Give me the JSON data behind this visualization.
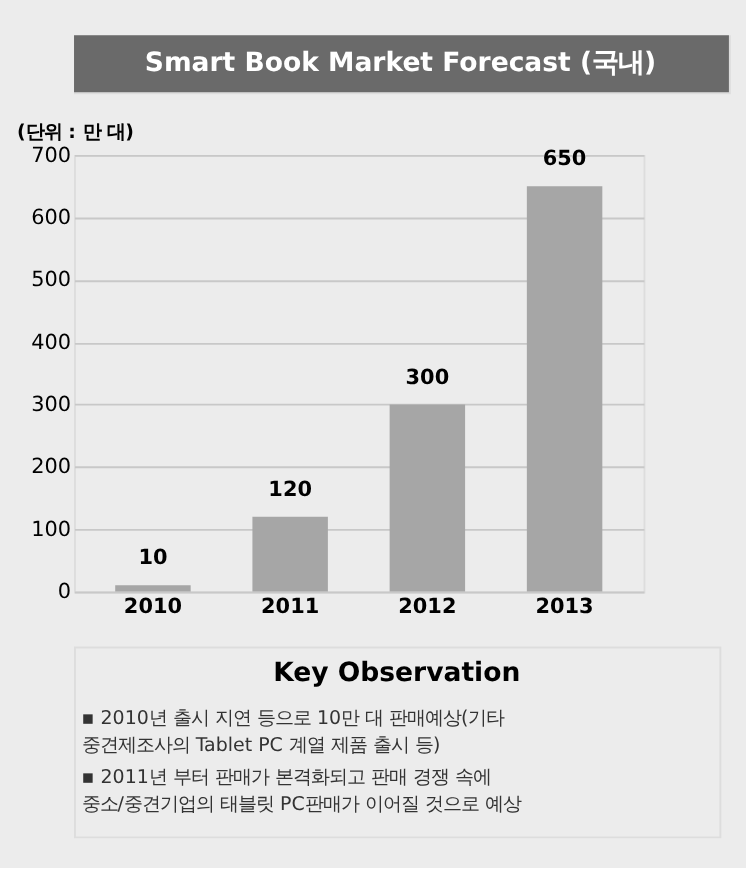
{
  "chart_data": {
    "type": "bar",
    "title": "Smart Book Market Forecast (국내)",
    "ylabel": "(단위 : 만 대)",
    "categories": [
      "2010",
      "2011",
      "2012",
      "2013"
    ],
    "values": [
      10,
      120,
      300,
      650
    ],
    "color": "#a6a6a6",
    "ylim": [
      0,
      700
    ],
    "yticks": [
      0,
      100,
      200,
      300,
      400,
      500,
      600,
      700
    ],
    "grid": "y",
    "data_labels": true,
    "annotations": [
      "Key Observation",
      "▪ 2010년 출시 지연 등으로 10만 대 판매예상(기타 중견제조사의 Tablet PC 계열 제품 출시 등)",
      "▪ 2011년 부터 판매가 본격화되고 판매 경쟁 속에 중소/중견기업의 태블릿 PC판매가 이어질 것으로 예상"
    ]
  }
}
